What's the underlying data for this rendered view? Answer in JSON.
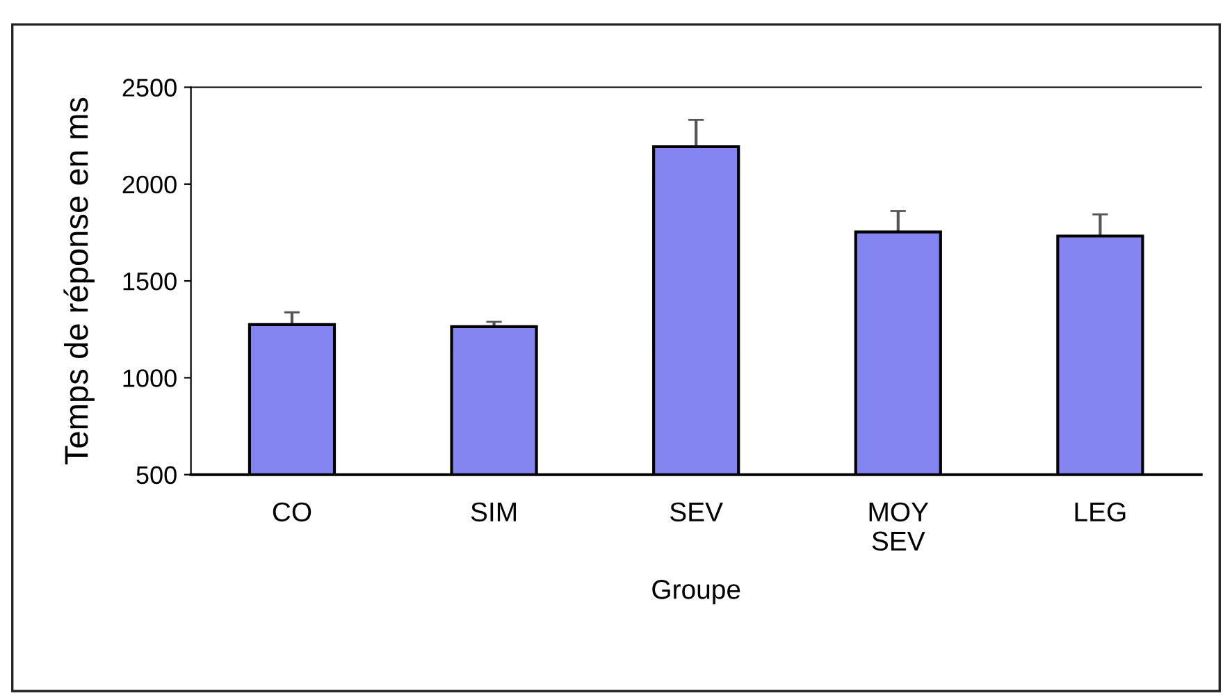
{
  "chart_data": {
    "type": "bar",
    "xlabel": "Groupe",
    "ylabel": "Temps de réponse en ms",
    "categories": [
      "CO",
      "SIM",
      "SEV",
      "MOY\nSEV",
      "LEG"
    ],
    "values": [
      1275,
      1264,
      2193,
      1753,
      1732
    ],
    "errors": [
      [
        1275,
        1338
      ],
      [
        1264,
        1289
      ],
      [
        2193,
        2332
      ],
      [
        1753,
        1861
      ],
      [
        1732,
        1844
      ]
    ],
    "color": "#8585f2",
    "ylim": [
      500,
      2500
    ],
    "yticks": [
      500,
      1000,
      1500,
      2000,
      2500
    ],
    "grid": false,
    "legend": false
  }
}
